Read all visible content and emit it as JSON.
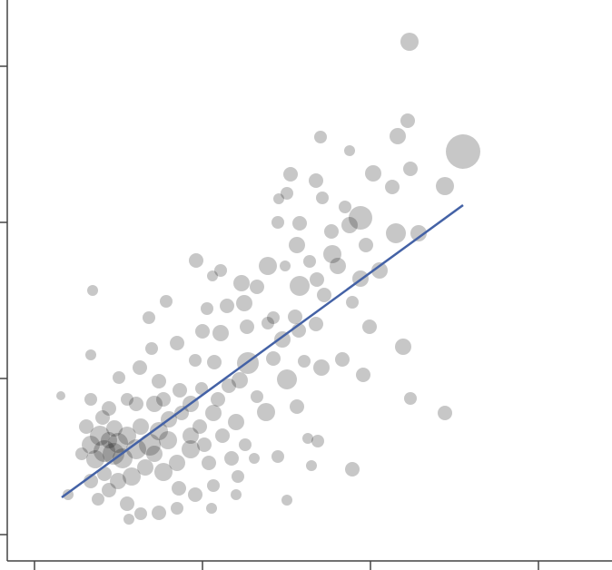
{
  "chart_data": {
    "type": "scatter",
    "xlim": [
      -30,
      636
    ],
    "ylim": [
      -29,
      589
    ],
    "xticks": [
      0,
      185,
      370,
      555
    ],
    "yticks": [
      0,
      172,
      344,
      516
    ],
    "color": "rgba(0,0,0,0.22)",
    "x": [
      413,
      472,
      411,
      400,
      414,
      452,
      315,
      347,
      373,
      282,
      310,
      394,
      359,
      398,
      423,
      342,
      317,
      269,
      278,
      268,
      292,
      327,
      347,
      365,
      289,
      328,
      257,
      178,
      205,
      196,
      228,
      245,
      276,
      303,
      311,
      334,
      359,
      380,
      292,
      319,
      350,
      287,
      310,
      369,
      231,
      190,
      145,
      126,
      64,
      212,
      185,
      205,
      234,
      257,
      263,
      273,
      291,
      406,
      339,
      316,
      362,
      278,
      235,
      263,
      297,
      414,
      452,
      289,
      255,
      301,
      312,
      305,
      268,
      350,
      278,
      29,
      62,
      157,
      129,
      177,
      198,
      116,
      93,
      137,
      160,
      184,
      214,
      226,
      245,
      62,
      75,
      88,
      72,
      62,
      67,
      77,
      92,
      102,
      117,
      112,
      127,
      137,
      148,
      162,
      172,
      182,
      197,
      207,
      222,
      232,
      217,
      192,
      172,
      157,
      142,
      122,
      107,
      92,
      77,
      62,
      52,
      57,
      82,
      102,
      117,
      137,
      157,
      177,
      197,
      224,
      242,
      37,
      70,
      104,
      132,
      147,
      87,
      97,
      82,
      112,
      132,
      142,
      102,
      82,
      172,
      187,
      202,
      195,
      159,
      222
    ],
    "y": [
      543,
      422,
      456,
      439,
      403,
      384,
      438,
      423,
      398,
      397,
      390,
      383,
      349,
      332,
      332,
      361,
      371,
      370,
      376,
      344,
      343,
      334,
      341,
      319,
      319,
      309,
      296,
      302,
      291,
      285,
      277,
      273,
      296,
      301,
      281,
      296,
      282,
      291,
      274,
      264,
      256,
      240,
      232,
      229,
      255,
      249,
      257,
      239,
      269,
      252,
      224,
      222,
      229,
      233,
      239,
      215,
      225,
      207,
      193,
      184,
      176,
      171,
      189,
      194,
      191,
      150,
      134,
      141,
      135,
      106,
      103,
      76,
      86,
      72,
      38,
      153,
      198,
      211,
      205,
      192,
      190,
      184,
      173,
      169,
      159,
      161,
      164,
      170,
      152,
      149,
      129,
      117,
      109,
      99,
      83,
      92,
      101,
      109,
      119,
      94,
      99,
      114,
      127,
      134,
      144,
      119,
      134,
      109,
      124,
      99,
      84,
      79,
      94,
      79,
      69,
      74,
      64,
      59,
      67,
      59,
      89,
      119,
      49,
      34,
      23,
      24,
      29,
      44,
      54,
      64,
      84,
      44,
      39,
      17,
      89,
      104,
      89,
      84,
      104,
      144,
      144,
      149,
      149,
      139,
      109,
      99,
      149,
      29,
      51,
      44
    ],
    "sizes": [
      10,
      19,
      8,
      9,
      8,
      10,
      7,
      6,
      9,
      8,
      8,
      8,
      13,
      11,
      9,
      7,
      7,
      6,
      7,
      7,
      8,
      8,
      9,
      8,
      9,
      10,
      10,
      8,
      7,
      6,
      9,
      8,
      6,
      7,
      8,
      9,
      9,
      9,
      11,
      8,
      7,
      8,
      8,
      8,
      9,
      7,
      7,
      7,
      6,
      8,
      8,
      9,
      8,
      7,
      7,
      9,
      8,
      9,
      8,
      9,
      8,
      11,
      12,
      8,
      7,
      7,
      8,
      8,
      10,
      6,
      7,
      6,
      7,
      8,
      6,
      5,
      6,
      8,
      7,
      7,
      8,
      8,
      7,
      8,
      8,
      7,
      8,
      9,
      7,
      7,
      8,
      9,
      11,
      10,
      10,
      12,
      11,
      10,
      9,
      11,
      12,
      10,
      9,
      8,
      9,
      8,
      9,
      8,
      9,
      7,
      8,
      8,
      10,
      9,
      10,
      9,
      10,
      9,
      8,
      8,
      7,
      8,
      8,
      8,
      7,
      8,
      7,
      8,
      7,
      7,
      6,
      6,
      7,
      6,
      9,
      10,
      12,
      11,
      9,
      8,
      9,
      8,
      7,
      8,
      9,
      8,
      8,
      6,
      8,
      6
    ],
    "trend_line": {
      "x": [
        30,
        472
      ],
      "y": [
        41,
        363
      ],
      "color": "#4462a6"
    }
  }
}
